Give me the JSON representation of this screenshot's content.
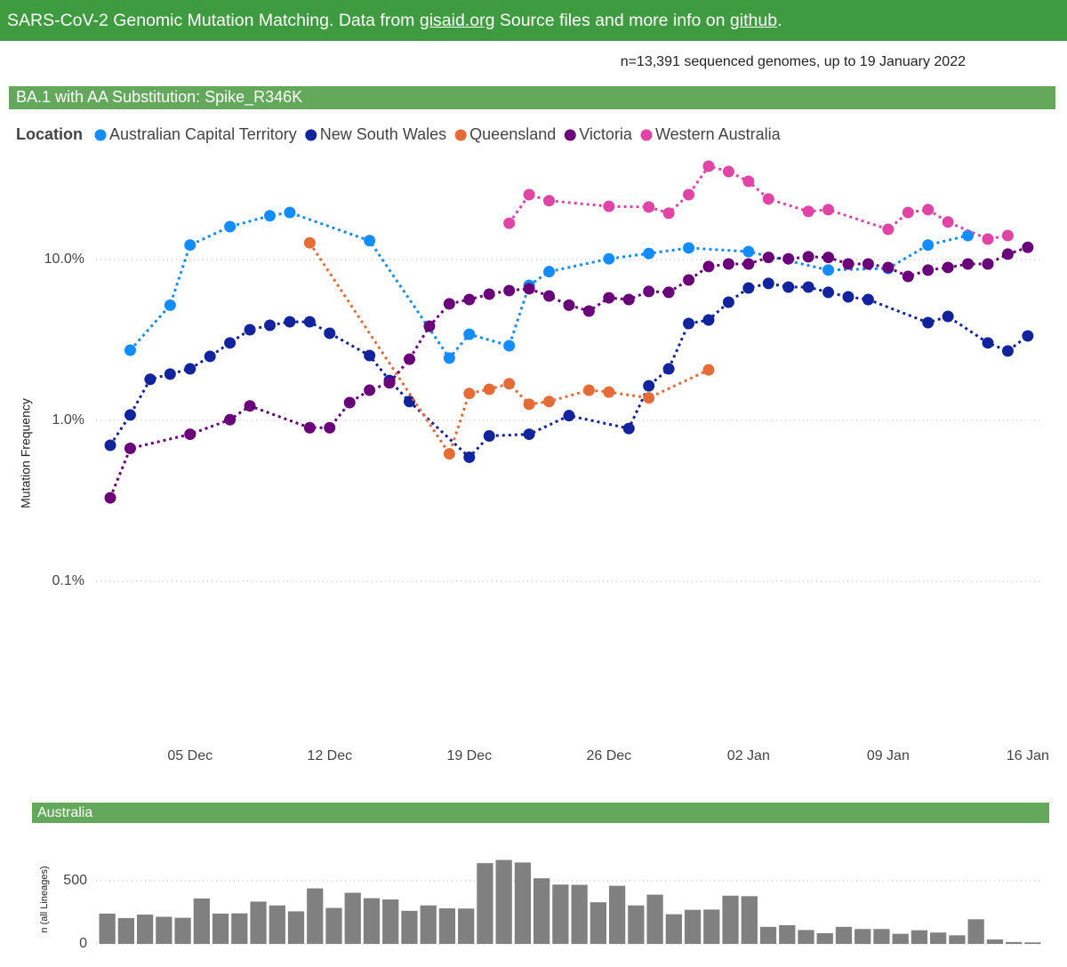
{
  "header": {
    "parts": [
      "SARS-CoV-2 Genomic Mutation Matching. Data from",
      "gisaid.org",
      "Source files and more info on",
      "github",
      "."
    ]
  },
  "chart_data": [
    {
      "type": "line",
      "subtitle": "n=13,391 sequenced genomes, up to 19 January 2022",
      "title": "BA.1 with AA Substitution: Spike_R346K",
      "legend_title": "Location",
      "y_label": "Mutation Frequency",
      "log_scale": true,
      "grid": true,
      "ylim": [
        0.01,
        40
      ],
      "yticks": [
        {
          "value": 0.1,
          "label": "0.1%"
        },
        {
          "value": 1,
          "label": "1.0%"
        },
        {
          "value": 10,
          "label": "10.0%"
        }
      ],
      "xlim": [
        "30 Nov",
        "17 Jan"
      ],
      "xticks": [
        "05 Dec",
        "12 Dec",
        "19 Dec",
        "26 Dec",
        "02 Jan",
        "09 Jan",
        "16 Jan"
      ],
      "series": [
        {
          "name": "Australian Capital Territory",
          "color": "#118dff",
          "x": [
            "02 Dec",
            "04 Dec",
            "05 Dec",
            "07 Dec",
            "09 Dec",
            "10 Dec",
            "14 Dec",
            "18 Dec",
            "19 Dec",
            "21 Dec",
            "22 Dec",
            "23 Dec",
            "26 Dec",
            "28 Dec",
            "30 Dec",
            "02 Jan",
            "06 Jan",
            "09 Jan",
            "11 Jan",
            "13 Jan"
          ],
          "values": [
            2.73,
            5.2,
            12.3,
            16.0,
            18.7,
            19.6,
            13.1,
            2.44,
            3.43,
            2.91,
            6.9,
            8.4,
            10.1,
            10.9,
            11.8,
            11.2,
            8.6,
            8.8,
            12.3,
            14.1
          ]
        },
        {
          "name": "New South Wales",
          "color": "#12239e",
          "x": [
            "01 Dec",
            "02 Dec",
            "03 Dec",
            "04 Dec",
            "05 Dec",
            "06 Dec",
            "07 Dec",
            "08 Dec",
            "09 Dec",
            "10 Dec",
            "11 Dec",
            "12 Dec",
            "14 Dec",
            "15 Dec",
            "16 Dec",
            "19 Dec",
            "20 Dec",
            "22 Dec",
            "24 Dec",
            "27 Dec",
            "28 Dec",
            "29 Dec",
            "30 Dec",
            "31 Dec",
            "01 Jan",
            "02 Jan",
            "03 Jan",
            "04 Jan",
            "05 Jan",
            "06 Jan",
            "07 Jan",
            "08 Jan",
            "11 Jan",
            "12 Jan",
            "14 Jan",
            "15 Jan",
            "16 Jan"
          ],
          "values": [
            0.7,
            1.08,
            1.8,
            1.94,
            2.09,
            2.5,
            3.03,
            3.66,
            3.9,
            4.1,
            4.1,
            3.48,
            2.53,
            1.77,
            1.31,
            0.59,
            0.8,
            0.82,
            1.07,
            0.89,
            1.64,
            2.09,
            4.0,
            4.21,
            5.43,
            6.65,
            7.1,
            6.74,
            6.74,
            6.25,
            5.86,
            5.64,
            4.05,
            4.43,
            3.03,
            2.7,
            3.35
          ]
        },
        {
          "name": "Queensland",
          "color": "#e66c37",
          "x": [
            "11 Dec",
            "18 Dec",
            "19 Dec",
            "20 Dec",
            "21 Dec",
            "22 Dec",
            "23 Dec",
            "25 Dec",
            "26 Dec",
            "28 Dec",
            "31 Dec"
          ],
          "values": [
            12.7,
            0.62,
            1.47,
            1.56,
            1.69,
            1.26,
            1.31,
            1.54,
            1.5,
            1.38,
            2.06
          ]
        },
        {
          "name": "Victoria",
          "color": "#6b007b",
          "x": [
            "01 Dec",
            "02 Dec",
            "05 Dec",
            "07 Dec",
            "08 Dec",
            "11 Dec",
            "12 Dec",
            "13 Dec",
            "14 Dec",
            "15 Dec",
            "16 Dec",
            "17 Dec",
            "18 Dec",
            "19 Dec",
            "20 Dec",
            "21 Dec",
            "22 Dec",
            "23 Dec",
            "24 Dec",
            "25 Dec",
            "26 Dec",
            "27 Dec",
            "28 Dec",
            "29 Dec",
            "30 Dec",
            "31 Dec",
            "01 Jan",
            "02 Jan",
            "03 Jan",
            "04 Jan",
            "05 Jan",
            "06 Jan",
            "07 Jan",
            "08 Jan",
            "09 Jan",
            "10 Jan",
            "11 Jan",
            "12 Jan",
            "13 Jan",
            "14 Jan",
            "15 Jan",
            "16 Jan"
          ],
          "values": [
            0.33,
            0.67,
            0.82,
            1.01,
            1.23,
            0.9,
            0.9,
            1.29,
            1.54,
            1.71,
            2.4,
            3.85,
            5.3,
            5.64,
            6.09,
            6.41,
            6.58,
            5.93,
            5.2,
            4.78,
            5.78,
            5.64,
            6.33,
            6.25,
            7.46,
            9.04,
            9.38,
            9.38,
            10.3,
            10.1,
            10.4,
            10.3,
            9.38,
            9.38,
            8.92,
            7.85,
            8.59,
            8.92,
            9.38,
            9.38,
            10.8,
            11.9
          ]
        },
        {
          "name": "Western Australia",
          "color": "#e044a7",
          "x": [
            "21 Dec",
            "22 Dec",
            "23 Dec",
            "26 Dec",
            "28 Dec",
            "29 Dec",
            "30 Dec",
            "31 Dec",
            "01 Jan",
            "02 Jan",
            "03 Jan",
            "05 Jan",
            "06 Jan",
            "09 Jan",
            "10 Jan",
            "11 Jan",
            "12 Jan",
            "14 Jan",
            "15 Jan"
          ],
          "values": [
            16.8,
            25.3,
            23.2,
            21.4,
            21.2,
            19.4,
            25.3,
            38.0,
            35.2,
            30.6,
            23.8,
            19.9,
            20.4,
            15.4,
            19.6,
            20.4,
            17.1,
            13.4,
            14.1
          ]
        }
      ]
    },
    {
      "type": "bar",
      "title": "Australia",
      "y_label": "n (all Lineages)",
      "color": "#808080",
      "grid": true,
      "ylim": [
        0,
        800
      ],
      "yticks": [
        0,
        500
      ],
      "values": [
        240,
        205,
        232,
        215,
        207,
        360,
        240,
        242,
        335,
        305,
        258,
        440,
        285,
        405,
        362,
        352,
        262,
        305,
        282,
        280,
        640,
        665,
        645,
        520,
        470,
        468,
        330,
        460,
        305,
        390,
        235,
        270,
        272,
        382,
        378,
        135,
        148,
        110,
        85,
        135,
        118,
        118,
        80,
        108,
        90,
        68,
        195,
        35,
        15,
        12
      ]
    }
  ]
}
